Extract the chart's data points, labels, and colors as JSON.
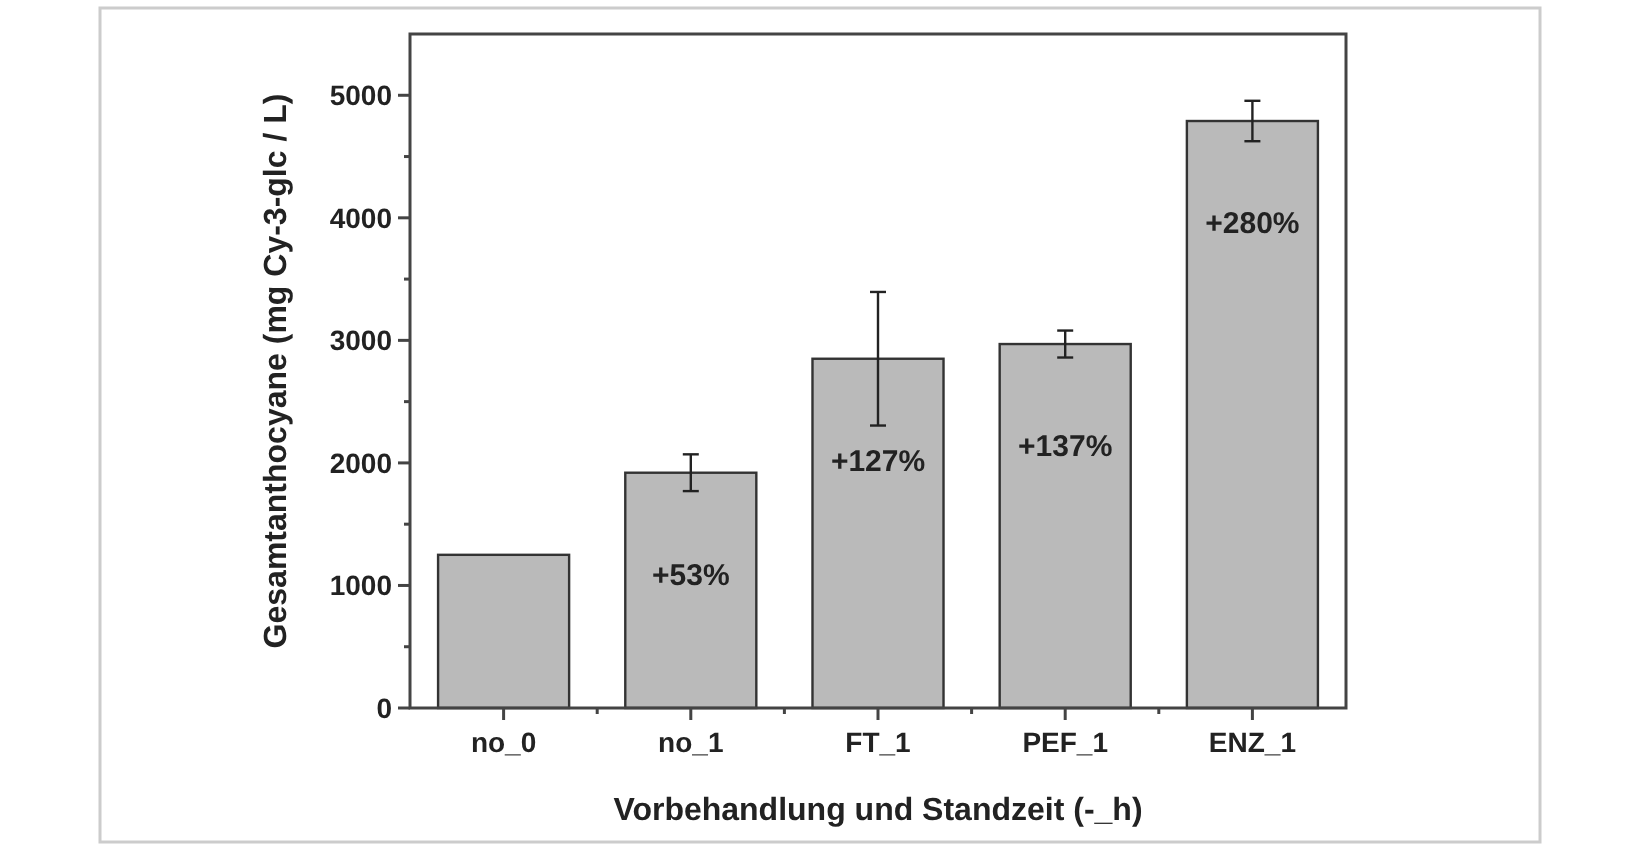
{
  "chart_data": {
    "type": "bar",
    "xlabel": "Vorbehandlung und Standzeit (-_h)",
    "ylabel": "Gesamtanthocyane (mg Cy-3-glc / L)",
    "categories": [
      "no_0",
      "no_1",
      "FT_1",
      "PEF_1",
      "ENZ_1"
    ],
    "values": [
      1250,
      1920,
      2850,
      2970,
      4790
    ],
    "errors": [
      null,
      150,
      545,
      110,
      165
    ],
    "annotations": [
      {
        "text": "+53%",
        "x": "no_1",
        "y": 1920
      },
      {
        "text": "+127%",
        "x": "FT_1",
        "y": 2850
      },
      {
        "text": "+137%",
        "x": "PEF_1",
        "y": 2970
      },
      {
        "text": "+280%",
        "x": "ENZ_1",
        "y": 4790
      }
    ],
    "color": "#bababa",
    "ylim": [
      0,
      5500
    ],
    "yticks": [
      0,
      {
        "value": 500,
        "label": null
      },
      1000,
      {
        "value": 1500,
        "label": null
      },
      2000,
      {
        "value": 2500,
        "label": null
      },
      3000,
      {
        "value": 3500,
        "label": null
      },
      4000,
      {
        "value": 4500,
        "label": null
      },
      5000
    ],
    "grid": false
  }
}
